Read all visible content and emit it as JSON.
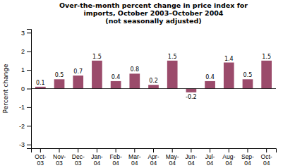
{
  "chart_data": {
    "type": "bar",
    "title": "Over-the-month percent change in price index for\nimports, October 2003–October 2004\n(not seasonally adjusted)",
    "ylabel": "Percent change",
    "categories": [
      "Oct-\n03",
      "Nov-\n03",
      "Dec-\n03",
      "Jan-\n04",
      "Feb-\n04",
      "Mar-\n04",
      "Apr-\n04",
      "May-\n04",
      "Jun-\n04",
      "Jul-\n04",
      "Aug-\n04",
      "Sep-\n04",
      "Oct-\n04"
    ],
    "values": [
      0.1,
      0.5,
      0.7,
      1.5,
      0.4,
      0.8,
      0.2,
      1.5,
      -0.2,
      0.4,
      1.4,
      0.5,
      1.5
    ],
    "color": "#9B4B6B",
    "ylim": [
      -3.2,
      3.2
    ],
    "yticks": [
      -3,
      -2,
      -1,
      0,
      1,
      2,
      3
    ],
    "grid": false,
    "data_labels": true
  }
}
